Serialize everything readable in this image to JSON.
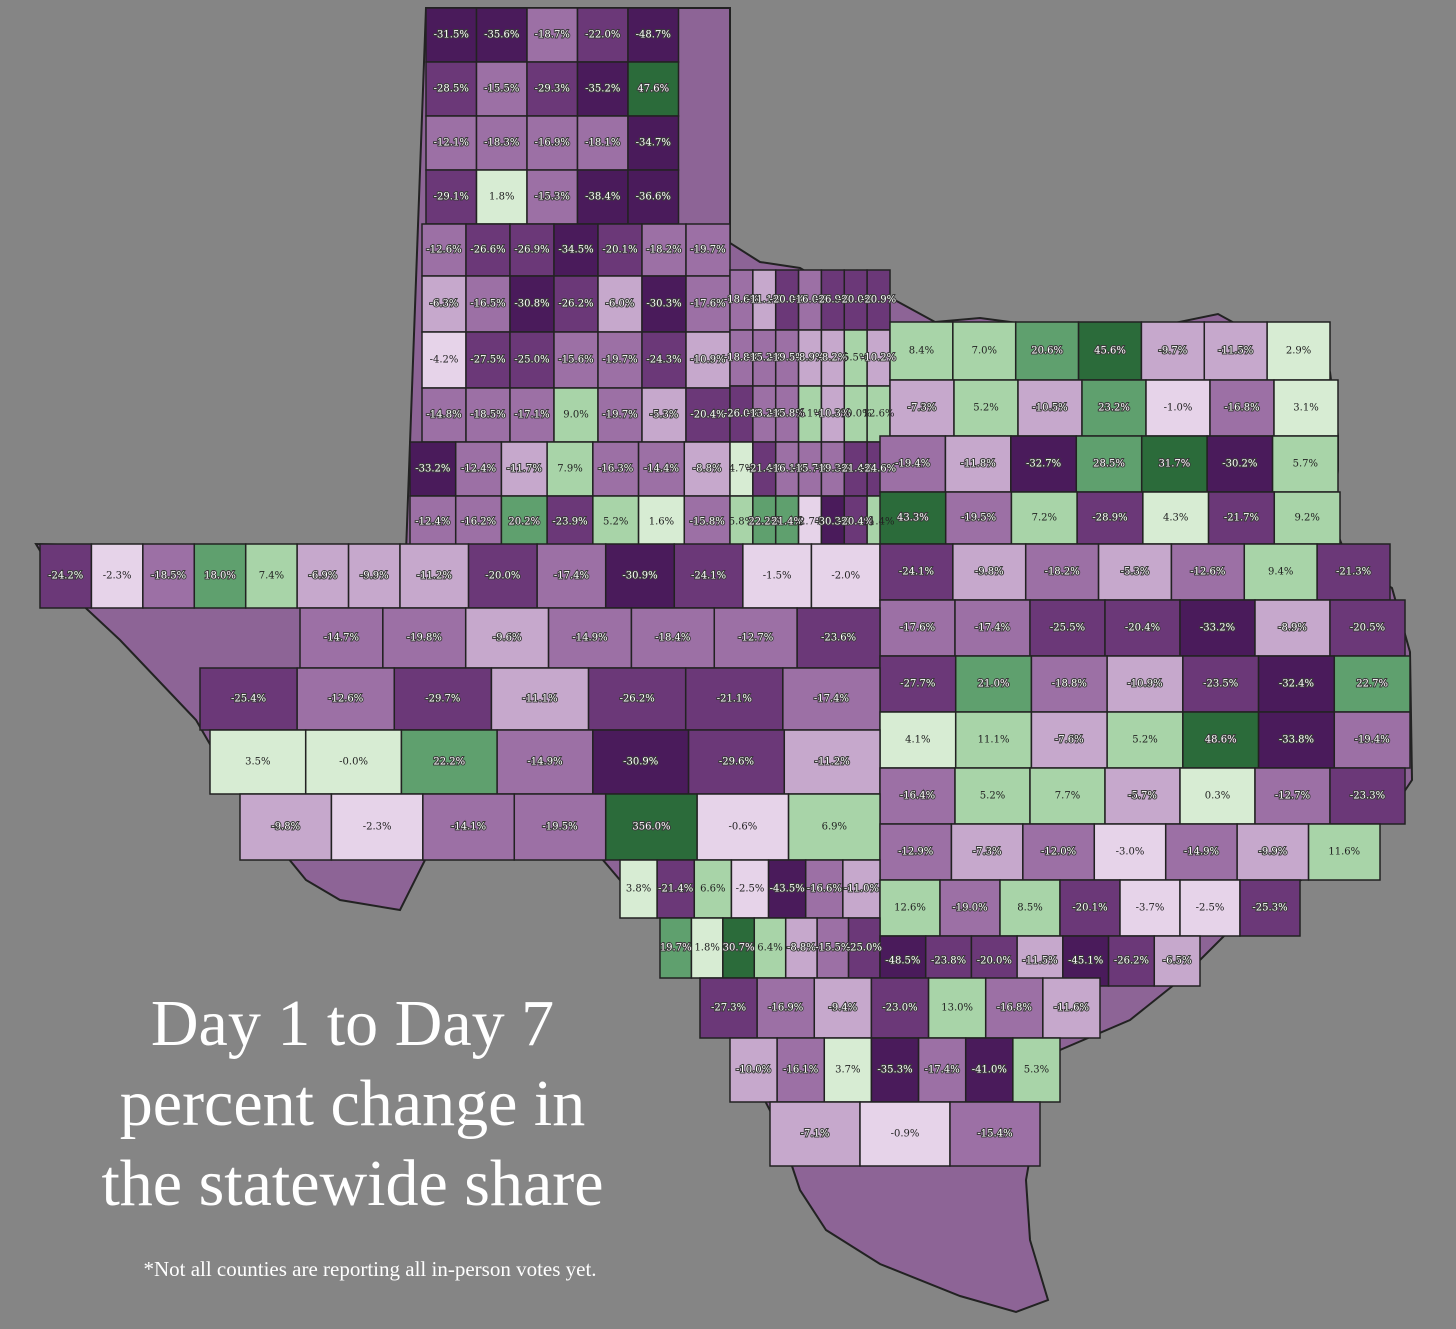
{
  "title_lines": [
    "Day 1 to Day 7",
    "percent change in",
    "the statewide share"
  ],
  "footnote": "*Not all counties are reporting all in-person votes yet.",
  "colors": {
    "background": "#858585",
    "strong_green": "#2b6b3a",
    "mid_green": "#5fa06e",
    "light_green": "#a8d4a8",
    "pale_green": "#d7ecd3",
    "pale_purple": "#e6d3e9",
    "light_purple": "#c6a8cc",
    "mid_purple": "#9c70a5",
    "dark_purple": "#6b3878",
    "deep_purple": "#4a1b5b"
  },
  "panhandle": [
    [
      "-31.5%",
      "-35.6%",
      "-18.7%",
      "-22.0%",
      "-48.7%"
    ],
    [
      "-28.5%",
      "-15.5%",
      "-29.3%",
      "-35.2%",
      "47.6%"
    ],
    [
      "-12.1%",
      "-18.3%",
      "-16.9%",
      "-18.1%",
      "-34.7%"
    ],
    [
      "-29.1%",
      "1.8%",
      "-15.3%",
      "-38.4%",
      "-36.6%"
    ]
  ],
  "county_values": [
    "-12.6%",
    "-26.6%",
    "-26.9%",
    "-34.5%",
    "-20.1%",
    "-18.2%",
    "-19.7%",
    "-6.3%",
    "-16.5%",
    "-30.8%",
    "-26.2%",
    "-6.0%",
    "-30.3%",
    "-17.6%",
    "-4.2%",
    "-27.5%",
    "-25.0%",
    "-15.6%",
    "-19.7%",
    "-24.3%",
    "-10.9%",
    "-14.8%",
    "-18.5%",
    "-17.1%",
    "9.0%",
    "-19.7%",
    "-5.3%",
    "-20.4%",
    "-33.2%",
    "-12.4%",
    "-11.7%",
    "7.9%",
    "-16.3%",
    "-14.4%",
    "-8.8%",
    "-12.4%",
    "-16.2%",
    "20.2%",
    "-23.9%",
    "5.2%",
    "1.6%",
    "-15.8%",
    "-18.6%",
    "-11.1%",
    "-20.0%",
    "-16.0%",
    "-26.9%",
    "-20.0%",
    "-20.9%",
    "-18.8%",
    "-15.2%",
    "-19.5%",
    "-8.9%",
    "-8.2%",
    "5.5%",
    "-10.2%",
    "-26.0%",
    "-13.2%",
    "-15.8%",
    "6.1%",
    "-10.3%",
    "10.0%",
    "12.6%",
    "4.7%",
    "-21.4%",
    "-16.1%",
    "-15.7%",
    "-19.3%",
    "-21.4%",
    "-24.6%",
    "5.8%",
    "22.2%",
    "21.4%",
    "-2.7%",
    "-30.3%",
    "-20.4%",
    "11.4%",
    "8.4%",
    "7.0%",
    "20.6%",
    "45.6%",
    "-9.7%",
    "-11.5%",
    "2.9%",
    "-7.3%",
    "5.2%",
    "-10.5%",
    "23.2%",
    "-1.0%",
    "-16.8%",
    "3.1%",
    "-19.4%",
    "-11.8%",
    "-32.7%",
    "28.5%",
    "31.7%",
    "-30.2%",
    "5.7%",
    "43.3%",
    "-19.5%",
    "7.2%",
    "-28.9%",
    "4.3%",
    "-21.7%",
    "9.2%",
    "-24.2%",
    "-2.3%",
    "-18.5%",
    "18.0%",
    "7.4%",
    "-6.9%",
    "-9.9%",
    "-11.2%",
    "-20.0%",
    "-17.4%",
    "-30.9%",
    "-24.1%",
    "-1.5%",
    "-2.0%",
    "-24.1%",
    "-9.8%",
    "-18.2%",
    "-5.3%",
    "-12.6%",
    "9.4%",
    "-21.3%",
    "-17.6%",
    "-17.4%",
    "-25.5%",
    "-20.4%",
    "-33.2%",
    "-8.9%",
    "-20.5%",
    "-14.7%",
    "-19.8%",
    "-9.6%",
    "-14.9%",
    "-18.4%",
    "-12.7%",
    "-23.6%",
    "-27.7%",
    "21.0%",
    "-18.8%",
    "-10.9%",
    "-23.5%",
    "-32.4%",
    "22.7%",
    "-25.4%",
    "-12.6%",
    "-29.7%",
    "-11.1%",
    "-26.2%",
    "-21.1%",
    "-17.4%",
    "4.1%",
    "11.1%",
    "-7.6%",
    "5.2%",
    "48.6%",
    "-33.8%",
    "-19.4%",
    "3.5%",
    "-0.0%",
    "22.2%",
    "-14.9%",
    "-30.9%",
    "-29.6%",
    "-11.2%",
    "-16.4%",
    "5.2%",
    "7.7%",
    "-5.7%",
    "0.3%",
    "-12.7%",
    "-23.3%",
    "-9.8%",
    "-2.3%",
    "-14.1%",
    "-19.5%",
    "356.0%",
    "-0.6%",
    "6.9%",
    "-12.9%",
    "-7.3%",
    "-12.0%",
    "-3.0%",
    "-14.9%",
    "-9.9%",
    "11.6%",
    "3.8%",
    "-21.4%",
    "6.6%",
    "-2.5%",
    "-43.5%",
    "-16.6%",
    "-11.0%",
    "12.6%",
    "-19.0%",
    "8.5%",
    "-20.1%",
    "-3.7%",
    "-2.5%",
    "-25.3%",
    "19.7%",
    "1.8%",
    "30.7%",
    "6.4%",
    "-8.8%",
    "-15.5%",
    "-25.0%",
    "-48.5%",
    "-23.8%",
    "-20.0%",
    "-11.5%",
    "-45.1%",
    "-26.2%",
    "-6.5%",
    "-27.3%",
    "-16.9%",
    "-9.4%",
    "-23.0%",
    "13.0%",
    "-16.8%",
    "-11.6%",
    "-10.0%",
    "-16.1%",
    "3.7%",
    "-35.3%",
    "-17.4%",
    "-41.0%",
    "5.3%",
    "-7.1%",
    "-0.9%",
    "-15.4%"
  ]
}
